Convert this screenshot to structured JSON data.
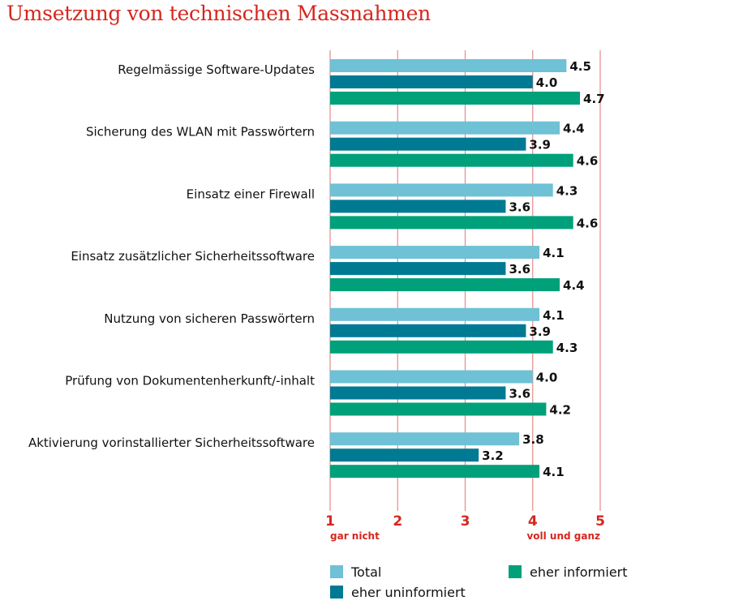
{
  "chart_data": {
    "type": "bar",
    "orientation": "horizontal",
    "title": "Umsetzung von technischen Massnahmen",
    "categories": [
      "Regelmässige Software-Updates",
      "Sicherung des WLAN mit Passwörtern",
      "Einsatz einer Firewall",
      "Einsatz zusätzlicher Sicherheitssoftware",
      "Nutzung von sicheren Passwörtern",
      "Prüfung von Dokumentenherkunft/-inhalt",
      "Aktivierung vorinstallierter Sicherheitssoftware"
    ],
    "series": [
      {
        "name": "Total",
        "color": "#6fc1d5",
        "values": [
          4.5,
          4.4,
          4.3,
          4.1,
          4.1,
          4.0,
          3.8
        ]
      },
      {
        "name": "eher uninformiert",
        "color": "#007a93",
        "values": [
          4.0,
          3.9,
          3.6,
          3.6,
          3.9,
          3.6,
          3.2
        ]
      },
      {
        "name": "eher informiert",
        "color": "#00a07a",
        "values": [
          4.7,
          4.6,
          4.6,
          4.4,
          4.3,
          4.2,
          4.1
        ]
      }
    ],
    "xlim": [
      1,
      5
    ],
    "xticks": [
      "1",
      "2",
      "3",
      "4",
      "5"
    ],
    "scale_anchors": {
      "low": "gar nicht",
      "high": "voll und ganz"
    },
    "grid": true,
    "grid_color": "#e58a8a",
    "legend_placement": "bottom",
    "axis_color": "#d7261e"
  }
}
